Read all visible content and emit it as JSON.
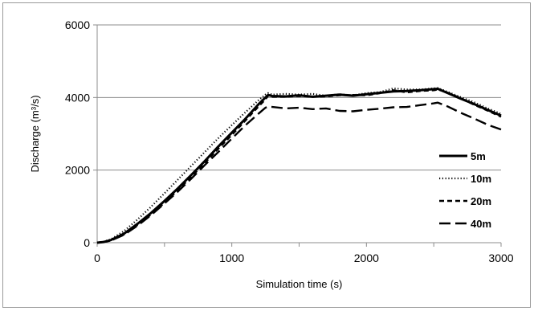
{
  "chart_data": {
    "type": "line",
    "xlabel": "Simulation time (s)",
    "ylabel": "Discharge (m³/s)",
    "xlim": [
      0,
      3000
    ],
    "ylim": [
      0,
      6000
    ],
    "x_ticks": [
      "0",
      "1000",
      "2000",
      "3000"
    ],
    "y_ticks": [
      "0",
      "2000",
      "4000",
      "6000"
    ],
    "grid": "horizontal",
    "legend_position": "right",
    "series": [
      {
        "name": "5m",
        "style": "solid",
        "x": [
          0,
          50,
          100,
          200,
          300,
          400,
          500,
          600,
          700,
          800,
          900,
          1000,
          1100,
          1200,
          1250,
          1270,
          1300,
          1400,
          1500,
          1600,
          1700,
          1800,
          1900,
          2000,
          2100,
          2200,
          2300,
          2400,
          2500,
          2530,
          2600,
          2700,
          2800,
          2900,
          3000
        ],
        "y": [
          0,
          20,
          70,
          250,
          520,
          820,
          1150,
          1500,
          1870,
          2250,
          2650,
          3030,
          3410,
          3820,
          4000,
          4070,
          4040,
          4030,
          4060,
          4020,
          4050,
          4080,
          4050,
          4090,
          4130,
          4170,
          4180,
          4200,
          4230,
          4240,
          4130,
          3970,
          3820,
          3660,
          3500
        ]
      },
      {
        "name": "10m",
        "style": "dotted",
        "x": [
          0,
          50,
          100,
          200,
          300,
          400,
          500,
          600,
          700,
          800,
          900,
          1000,
          1100,
          1200,
          1250,
          1270,
          1300,
          1400,
          1500,
          1600,
          1700,
          1800,
          1900,
          2000,
          2100,
          2200,
          2300,
          2400,
          2500,
          2530,
          2600,
          2700,
          2800,
          2900,
          3000
        ],
        "y": [
          0,
          30,
          90,
          320,
          640,
          990,
          1360,
          1740,
          2120,
          2500,
          2880,
          3240,
          3590,
          3930,
          4080,
          4120,
          4080,
          4100,
          4080,
          4100,
          4050,
          4090,
          4060,
          4120,
          4150,
          4250,
          4220,
          4220,
          4250,
          4260,
          4160,
          4010,
          3870,
          3700,
          3550
        ]
      },
      {
        "name": "20m",
        "style": "short-dash",
        "x": [
          0,
          50,
          100,
          200,
          300,
          400,
          500,
          600,
          700,
          800,
          900,
          1000,
          1100,
          1200,
          1250,
          1270,
          1300,
          1400,
          1500,
          1600,
          1700,
          1800,
          1900,
          2000,
          2100,
          2200,
          2300,
          2400,
          2500,
          2530,
          2600,
          2700,
          2800,
          2900,
          3000
        ],
        "y": [
          0,
          20,
          60,
          230,
          490,
          780,
          1100,
          1450,
          1820,
          2200,
          2590,
          2970,
          3360,
          3760,
          3950,
          4050,
          4020,
          4020,
          4040,
          4020,
          4030,
          4060,
          4070,
          4060,
          4120,
          4200,
          4140,
          4180,
          4200,
          4220,
          4140,
          3980,
          3800,
          3640,
          3470
        ]
      },
      {
        "name": "40m",
        "style": "long-dash",
        "x": [
          0,
          50,
          100,
          200,
          300,
          400,
          500,
          600,
          700,
          800,
          900,
          1000,
          1100,
          1200,
          1250,
          1270,
          1300,
          1400,
          1500,
          1600,
          1700,
          1800,
          1900,
          2000,
          2100,
          2200,
          2300,
          2400,
          2500,
          2530,
          2600,
          2700,
          2800,
          2900,
          3000
        ],
        "y": [
          0,
          20,
          55,
          220,
          470,
          760,
          1080,
          1410,
          1770,
          2140,
          2500,
          2870,
          3230,
          3560,
          3720,
          3750,
          3740,
          3700,
          3720,
          3680,
          3700,
          3630,
          3620,
          3660,
          3690,
          3730,
          3740,
          3790,
          3840,
          3860,
          3760,
          3580,
          3420,
          3250,
          3120
        ]
      }
    ]
  }
}
